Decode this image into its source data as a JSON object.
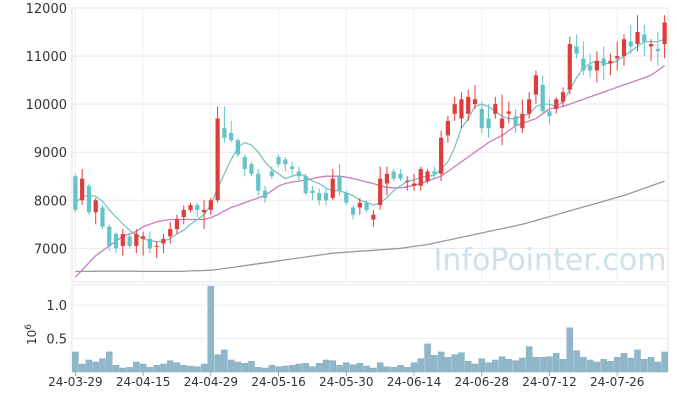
{
  "chart_data": {
    "type": "candlestick",
    "watermark": "InfoPointer.com",
    "price_axis": {
      "ylim": [
        6300,
        12000
      ],
      "ticks": [
        7000,
        8000,
        9000,
        10000,
        11000,
        12000
      ]
    },
    "volume_axis": {
      "ylim": [
        0,
        1.3
      ],
      "ticks": [
        0.5,
        1.0
      ],
      "multiplier_base": "10",
      "multiplier_exp": "6"
    },
    "x_ticks": [
      {
        "i": 0,
        "label": "24-03-29"
      },
      {
        "i": 10,
        "label": "24-04-15"
      },
      {
        "i": 20,
        "label": "24-04-29"
      },
      {
        "i": 30,
        "label": "24-05-16"
      },
      {
        "i": 40,
        "label": "24-05-30"
      },
      {
        "i": 50,
        "label": "24-06-14"
      },
      {
        "i": 60,
        "label": "24-06-28"
      },
      {
        "i": 70,
        "label": "24-07-12"
      },
      {
        "i": 80,
        "label": "24-07-26"
      }
    ],
    "colors": {
      "up": "#e03c3c",
      "down": "#63c3c9",
      "ma_short": "#7cc3c0",
      "ma_mid": "#c77fbd",
      "ma_long": "#999999",
      "volume": "#8fb6c9"
    },
    "candles": [
      [
        8500,
        8550,
        7750,
        7800
      ],
      [
        8000,
        8650,
        7900,
        8450
      ],
      [
        8300,
        8350,
        7700,
        7750
      ],
      [
        7750,
        8050,
        7500,
        8000
      ],
      [
        7850,
        7900,
        7400,
        7450
      ],
      [
        7450,
        7500,
        6950,
        7050
      ],
      [
        7300,
        7350,
        6900,
        7000
      ],
      [
        7050,
        7400,
        6850,
        7300
      ],
      [
        7250,
        7300,
        7000,
        7050
      ],
      [
        7050,
        7400,
        6900,
        7300
      ],
      [
        7200,
        7350,
        6850,
        7250
      ],
      [
        7200,
        7350,
        6900,
        7000
      ],
      [
        7050,
        7150,
        6800,
        7050
      ],
      [
        7100,
        7300,
        6900,
        7200
      ],
      [
        7250,
        7550,
        7100,
        7400
      ],
      [
        7400,
        7700,
        7300,
        7600
      ],
      [
        7650,
        7900,
        7500,
        7800
      ],
      [
        7800,
        7950,
        7750,
        7900
      ],
      [
        7900,
        7950,
        7650,
        7800
      ],
      [
        7750,
        8000,
        7400,
        7800
      ],
      [
        7800,
        8050,
        7700,
        8000
      ],
      [
        8000,
        9950,
        7950,
        9700
      ],
      [
        9500,
        9950,
        9200,
        9300
      ],
      [
        9400,
        9650,
        9200,
        9250
      ],
      [
        9250,
        9300,
        8900,
        8950
      ],
      [
        8900,
        8950,
        8500,
        8650
      ],
      [
        8750,
        8800,
        8500,
        8550
      ],
      [
        8550,
        8650,
        8100,
        8200
      ],
      [
        8200,
        8300,
        7950,
        8050
      ],
      [
        8600,
        8700,
        8450,
        8500
      ],
      [
        8900,
        8950,
        8700,
        8750
      ],
      [
        8850,
        8900,
        8600,
        8750
      ],
      [
        8700,
        8800,
        8500,
        8650
      ],
      [
        8600,
        8700,
        8400,
        8500
      ],
      [
        8500,
        8550,
        8100,
        8150
      ],
      [
        8200,
        8300,
        8000,
        8150
      ],
      [
        8150,
        8250,
        7900,
        8000
      ],
      [
        8150,
        8250,
        7900,
        8000
      ],
      [
        8050,
        8650,
        8000,
        8450
      ],
      [
        8500,
        8750,
        8100,
        8200
      ],
      [
        8150,
        8200,
        7900,
        7950
      ],
      [
        7850,
        7900,
        7600,
        7700
      ],
      [
        7850,
        8050,
        7700,
        7950
      ],
      [
        7950,
        8000,
        7750,
        7800
      ],
      [
        7600,
        7800,
        7450,
        7700
      ],
      [
        7900,
        8700,
        7800,
        8450
      ],
      [
        8350,
        8700,
        8100,
        8550
      ],
      [
        8600,
        8650,
        8400,
        8450
      ],
      [
        8550,
        8650,
        8400,
        8450
      ],
      [
        8400,
        8500,
        8200,
        8400
      ],
      [
        8300,
        8550,
        8200,
        8350
      ],
      [
        8300,
        8700,
        8200,
        8650
      ],
      [
        8400,
        8650,
        8350,
        8600
      ],
      [
        8600,
        8700,
        8450,
        8550
      ],
      [
        8550,
        9450,
        8400,
        9300
      ],
      [
        9350,
        9750,
        9200,
        9650
      ],
      [
        9800,
        10150,
        9650,
        10000
      ],
      [
        9700,
        10250,
        9500,
        10100
      ],
      [
        9800,
        10300,
        9650,
        10150
      ],
      [
        10000,
        10400,
        9900,
        10100
      ],
      [
        9900,
        10050,
        9400,
        9500
      ],
      [
        9700,
        10000,
        9300,
        9500
      ],
      [
        9800,
        10150,
        9700,
        10000
      ],
      [
        9500,
        10200,
        9150,
        9700
      ],
      [
        9800,
        10050,
        9600,
        9850
      ],
      [
        9750,
        9900,
        9400,
        9550
      ],
      [
        9500,
        10100,
        9400,
        9800
      ],
      [
        9800,
        10250,
        9700,
        10100
      ],
      [
        10200,
        10700,
        10000,
        10600
      ],
      [
        10400,
        10600,
        9800,
        9850
      ],
      [
        9850,
        10100,
        9600,
        9750
      ],
      [
        9900,
        10150,
        9800,
        10100
      ],
      [
        10050,
        10350,
        9950,
        10250
      ],
      [
        10300,
        11400,
        10200,
        11250
      ],
      [
        11200,
        11450,
        10950,
        11050
      ],
      [
        10950,
        11300,
        10600,
        10700
      ],
      [
        10800,
        11050,
        10550,
        10700
      ],
      [
        10700,
        11100,
        10450,
        10900
      ],
      [
        10950,
        11200,
        10500,
        10800
      ],
      [
        10850,
        11050,
        10600,
        10900
      ],
      [
        10950,
        11300,
        10700,
        11000
      ],
      [
        11000,
        11450,
        10800,
        11350
      ],
      [
        11300,
        11650,
        11050,
        11200
      ],
      [
        11250,
        11850,
        11100,
        11500
      ],
      [
        11450,
        11650,
        11000,
        11300
      ],
      [
        11200,
        11350,
        10900,
        11250
      ],
      [
        11150,
        11500,
        10800,
        11100
      ],
      [
        11250,
        11850,
        10950,
        11700
      ]
    ],
    "volume": [
      0.3,
      0.12,
      0.18,
      0.15,
      0.2,
      0.3,
      0.1,
      0.06,
      0.07,
      0.15,
      0.12,
      0.07,
      0.1,
      0.12,
      0.17,
      0.14,
      0.1,
      0.09,
      0.08,
      0.12,
      1.28,
      0.26,
      0.33,
      0.18,
      0.15,
      0.13,
      0.16,
      0.07,
      0.06,
      0.1,
      0.08,
      0.09,
      0.1,
      0.12,
      0.13,
      0.08,
      0.13,
      0.18,
      0.17,
      0.1,
      0.14,
      0.11,
      0.13,
      0.09,
      0.06,
      0.14,
      0.08,
      0.07,
      0.1,
      0.07,
      0.14,
      0.2,
      0.42,
      0.25,
      0.3,
      0.22,
      0.26,
      0.29,
      0.16,
      0.12,
      0.2,
      0.14,
      0.18,
      0.23,
      0.19,
      0.17,
      0.21,
      0.38,
      0.22,
      0.22,
      0.23,
      0.28,
      0.19,
      0.66,
      0.32,
      0.22,
      0.18,
      0.15,
      0.19,
      0.16,
      0.22,
      0.28,
      0.21,
      0.33,
      0.19,
      0.22,
      0.15,
      0.3
    ],
    "ma_short": [
      7950,
      8070,
      8100,
      8080,
      7980,
      7800,
      7650,
      7510,
      7380,
      7280,
      7200,
      7160,
      7140,
      7150,
      7200,
      7300,
      7380,
      7500,
      7600,
      7700,
      7900,
      8250,
      8550,
      8850,
      9100,
      9200,
      9150,
      9000,
      8800,
      8650,
      8550,
      8450,
      8500,
      8550,
      8500,
      8400,
      8350,
      8250,
      8200,
      8200,
      8150,
      8100,
      8000,
      7960,
      7900,
      7950,
      8050,
      8200,
      8300,
      8400,
      8420,
      8480,
      8500,
      8520,
      8650,
      8800,
      9100,
      9500,
      9700,
      9950,
      10000,
      9950,
      9850,
      9750,
      9700,
      9700,
      9750,
      9800,
      9950,
      10000,
      10000,
      9950,
      10050,
      10300,
      10550,
      10750,
      10850,
      10900,
      10850,
      10850,
      10900,
      11000,
      11100,
      11200,
      11300,
      11300,
      11300,
      11350
    ],
    "ma_mid": [
      6400,
      6550,
      6700,
      6850,
      6950,
      7050,
      7150,
      7250,
      7300,
      7350,
      7450,
      7500,
      7550,
      7580,
      7600,
      7600,
      7600,
      7600,
      7600,
      7600,
      7640,
      7700,
      7780,
      7850,
      7900,
      7950,
      8000,
      8050,
      8100,
      8200,
      8300,
      8350,
      8380,
      8400,
      8420,
      8450,
      8480,
      8500,
      8500,
      8500,
      8480,
      8450,
      8420,
      8380,
      8350,
      8300,
      8270,
      8260,
      8260,
      8280,
      8310,
      8350,
      8400,
      8450,
      8500,
      8600,
      8700,
      8800,
      8900,
      9000,
      9100,
      9200,
      9280,
      9350,
      9450,
      9550,
      9600,
      9650,
      9700,
      9800,
      9900,
      9930,
      9950,
      10000,
      10050,
      10100,
      10150,
      10200,
      10250,
      10300,
      10350,
      10400,
      10450,
      10500,
      10550,
      10600,
      10700,
      10800
    ],
    "ma_long": [
      6520,
      6520,
      6520,
      6525,
      6525,
      6525,
      6525,
      6525,
      6525,
      6525,
      6520,
      6520,
      6520,
      6520,
      6520,
      6520,
      6525,
      6530,
      6535,
      6540,
      6545,
      6560,
      6580,
      6600,
      6620,
      6640,
      6660,
      6680,
      6700,
      6720,
      6740,
      6760,
      6780,
      6800,
      6820,
      6840,
      6860,
      6880,
      6900,
      6910,
      6920,
      6930,
      6940,
      6950,
      6960,
      6970,
      6980,
      6990,
      7000,
      7020,
      7040,
      7060,
      7080,
      7110,
      7140,
      7170,
      7200,
      7230,
      7260,
      7290,
      7320,
      7350,
      7380,
      7410,
      7440,
      7470,
      7500,
      7540,
      7580,
      7620,
      7660,
      7700,
      7740,
      7780,
      7820,
      7860,
      7900,
      7940,
      7980,
      8020,
      8060,
      8100,
      8150,
      8200,
      8250,
      8300,
      8350,
      8400
    ]
  }
}
